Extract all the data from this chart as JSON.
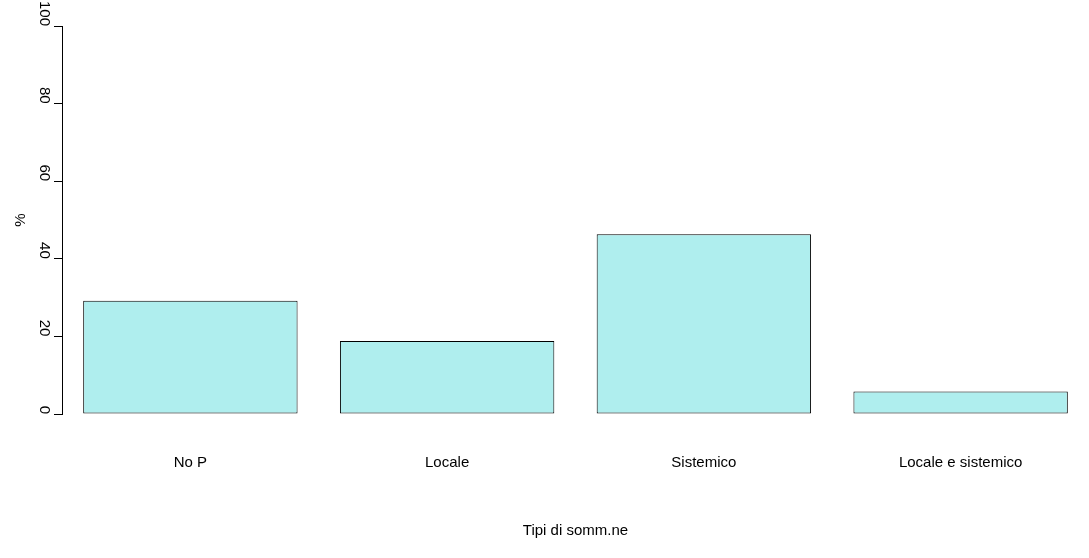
{
  "chart_data": {
    "type": "bar",
    "xlabel": "Tipi di somm.ne",
    "ylabel": "%",
    "categories": [
      "No P",
      "Locale",
      "Sistemico",
      "Locale e sistemico"
    ],
    "values": [
      29.2,
      18.8,
      46.3,
      5.8
    ],
    "color": "#afeeee",
    "ylim": [
      0,
      100
    ],
    "yticks": [
      0,
      20,
      40,
      60,
      80,
      100
    ],
    "grid": false,
    "legend": false
  }
}
